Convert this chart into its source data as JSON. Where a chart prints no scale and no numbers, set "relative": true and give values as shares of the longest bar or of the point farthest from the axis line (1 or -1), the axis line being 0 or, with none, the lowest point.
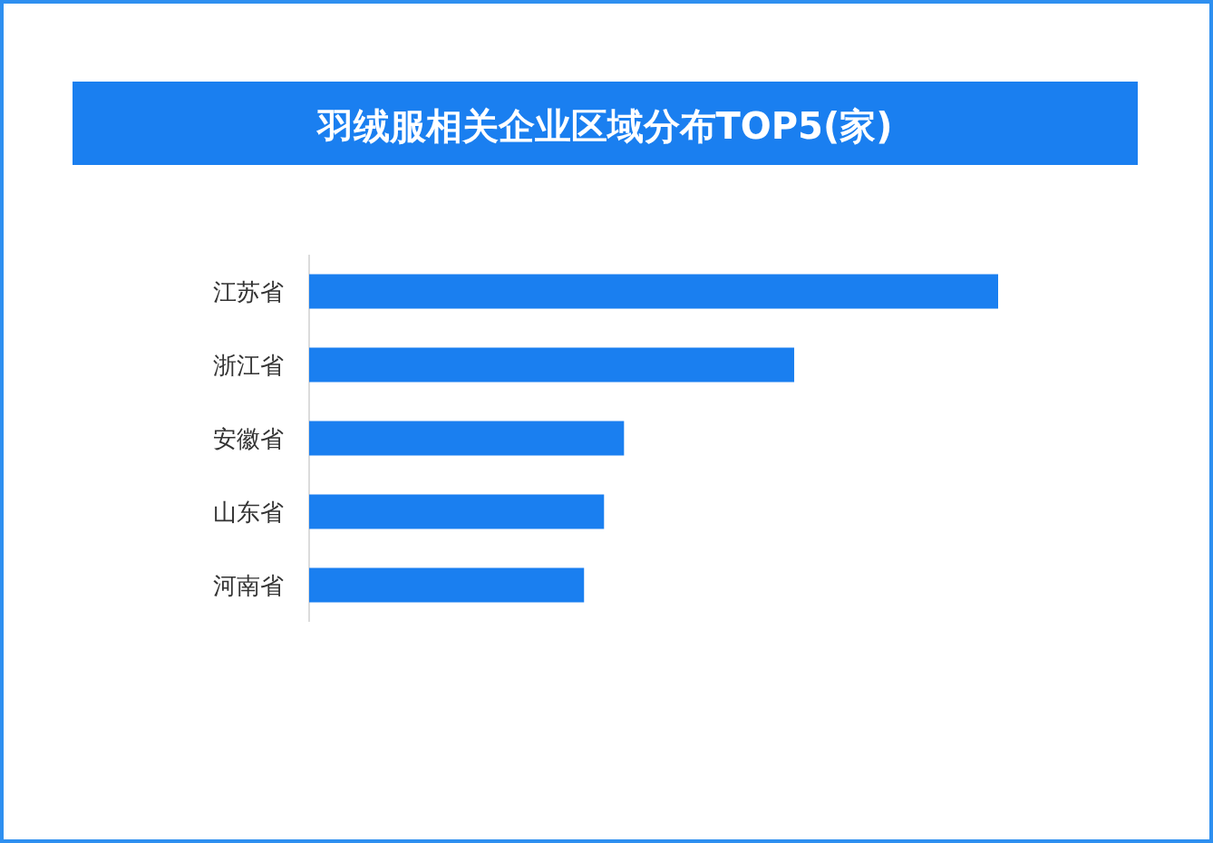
{
  "chart_data": {
    "type": "bar",
    "title": "羽绒服相关企业区域分布TOP5(家)",
    "orientation": "horizontal",
    "relative": true,
    "categories": [
      "江苏省",
      "浙江省",
      "安徽省",
      "山东省",
      "河南省"
    ],
    "values": [
      1,
      0.704,
      0.457,
      0.428,
      0.399
    ],
    "color": "#1a7ff0"
  }
}
